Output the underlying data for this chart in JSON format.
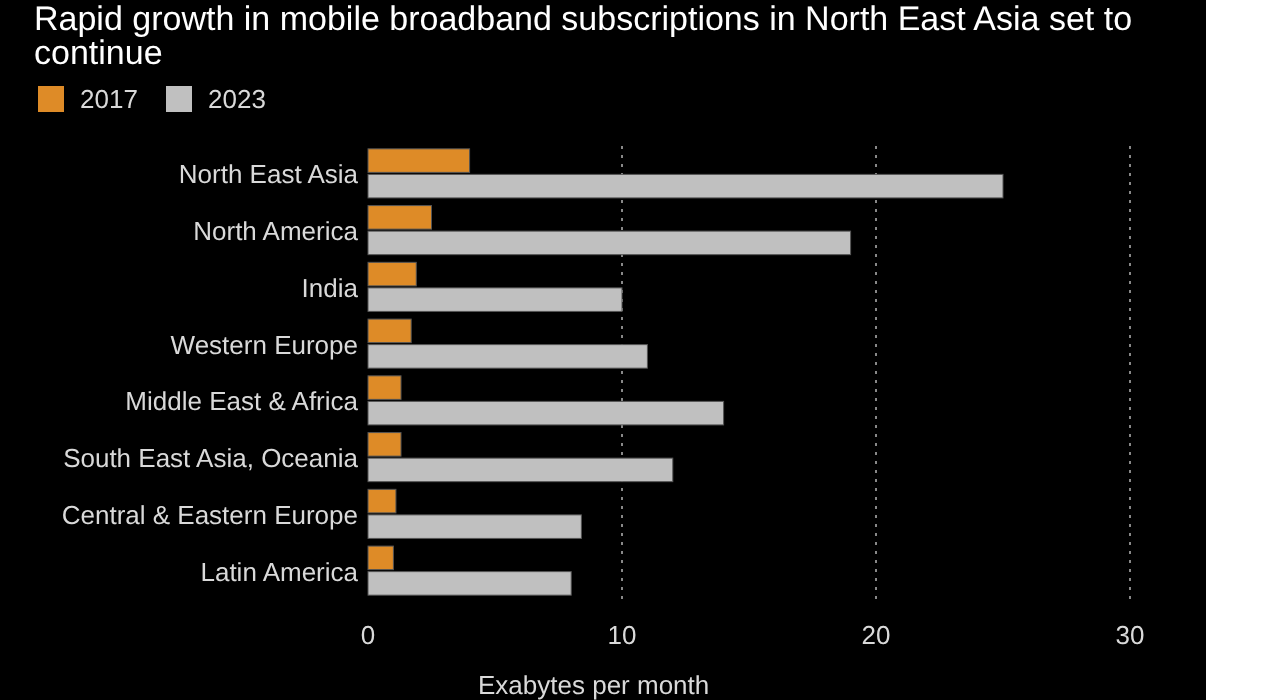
{
  "chart_data": {
    "type": "bar",
    "orientation": "horizontal",
    "title": "Rapid growth in mobile broadband subscriptions in North East Asia set to continue",
    "xlabel": "Exabytes per month",
    "categories": [
      "North East Asia",
      "North America",
      "India",
      "Western Europe",
      "Middle East & Africa",
      "South East Asia, Oceania",
      "Central & Eastern Europe",
      "Latin America"
    ],
    "series": [
      {
        "name": "2017",
        "color": "#de8b27",
        "values": [
          4.0,
          2.5,
          1.9,
          1.7,
          1.3,
          1.3,
          1.1,
          1.0
        ]
      },
      {
        "name": "2023",
        "color": "#c0c0c0",
        "values": [
          25.0,
          19.0,
          10.0,
          11.0,
          14.0,
          12.0,
          8.4,
          8.0
        ]
      }
    ],
    "xlim": [
      0,
      30
    ],
    "xticks": [
      0,
      10,
      20,
      30
    ],
    "grid": "x",
    "legend": "top left"
  }
}
